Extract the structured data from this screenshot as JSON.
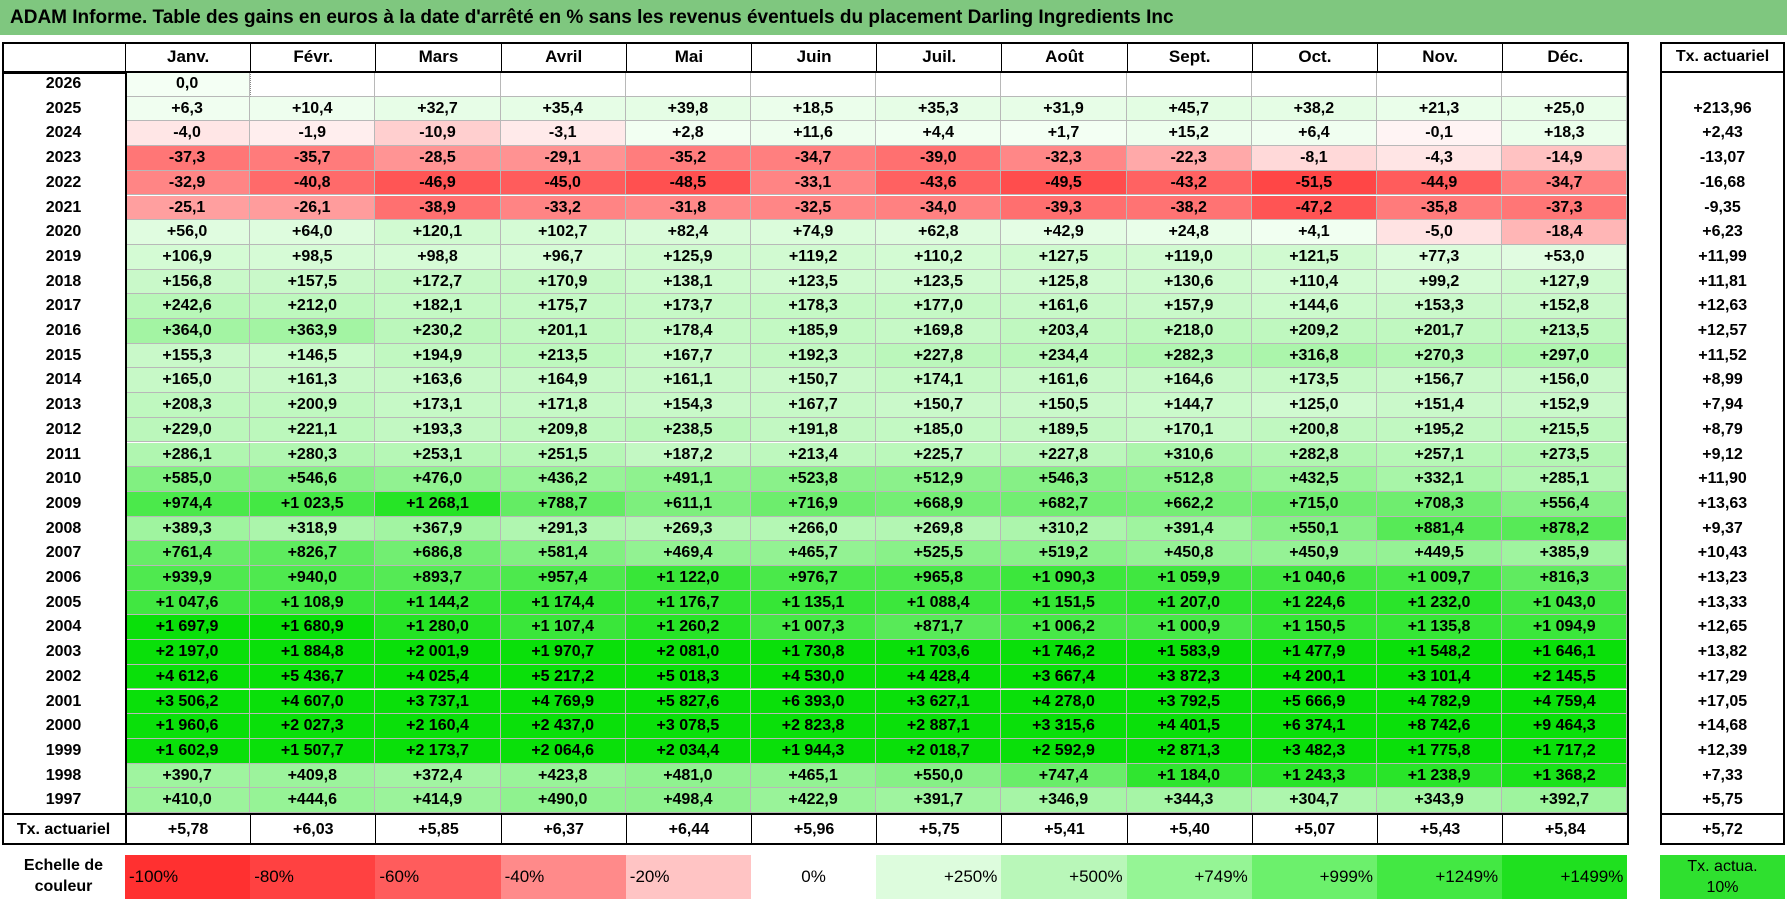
{
  "title": "ADAM Informe. Table des gains en euros à la date d'arrêté en % sans les revenus éventuels du placement Darling Ingredients Inc",
  "months": [
    "Janv.",
    "Févr.",
    "Mars",
    "Avril",
    "Mai",
    "Juin",
    "Juil.",
    "Août",
    "Sept.",
    "Oct.",
    "Nov.",
    "Déc."
  ],
  "rate_header": "Tx. actuariel",
  "rows": [
    {
      "year": "2026",
      "values": [
        "0,0",
        "",
        "",
        "",
        "",
        "",
        "",
        "",
        "",
        "",
        "",
        ""
      ],
      "rate": ""
    },
    {
      "year": "2025",
      "values": [
        "+6,3",
        "+10,4",
        "+32,7",
        "+35,4",
        "+39,8",
        "+18,5",
        "+35,3",
        "+31,9",
        "+45,7",
        "+38,2",
        "+21,3",
        "+25,0"
      ],
      "rate": "+213,96"
    },
    {
      "year": "2024",
      "values": [
        "-4,0",
        "-1,9",
        "-10,9",
        "-3,1",
        "+2,8",
        "+11,6",
        "+4,4",
        "+1,7",
        "+15,2",
        "+6,4",
        "-0,1",
        "+18,3"
      ],
      "rate": "+2,43"
    },
    {
      "year": "2023",
      "values": [
        "-37,3",
        "-35,7",
        "-28,5",
        "-29,1",
        "-35,2",
        "-34,7",
        "-39,0",
        "-32,3",
        "-22,3",
        "-8,1",
        "-4,3",
        "-14,9"
      ],
      "rate": "-13,07"
    },
    {
      "year": "2022",
      "values": [
        "-32,9",
        "-40,8",
        "-46,9",
        "-45,0",
        "-48,5",
        "-33,1",
        "-43,6",
        "-49,5",
        "-43,2",
        "-51,5",
        "-44,9",
        "-34,7"
      ],
      "rate": "-16,68"
    },
    {
      "year": "2021",
      "values": [
        "-25,1",
        "-26,1",
        "-38,9",
        "-33,2",
        "-31,8",
        "-32,5",
        "-34,0",
        "-39,3",
        "-38,2",
        "-47,2",
        "-35,8",
        "-37,3"
      ],
      "rate": "-9,35"
    },
    {
      "year": "2020",
      "values": [
        "+56,0",
        "+64,0",
        "+120,1",
        "+102,7",
        "+82,4",
        "+74,9",
        "+62,8",
        "+42,9",
        "+24,8",
        "+4,1",
        "-5,0",
        "-18,4"
      ],
      "rate": "+6,23"
    },
    {
      "year": "2019",
      "values": [
        "+106,9",
        "+98,5",
        "+98,8",
        "+96,7",
        "+125,9",
        "+119,2",
        "+110,2",
        "+127,5",
        "+119,0",
        "+121,5",
        "+77,3",
        "+53,0"
      ],
      "rate": "+11,99"
    },
    {
      "year": "2018",
      "values": [
        "+156,8",
        "+157,5",
        "+172,7",
        "+170,9",
        "+138,1",
        "+123,5",
        "+123,5",
        "+125,8",
        "+130,6",
        "+110,4",
        "+99,2",
        "+127,9"
      ],
      "rate": "+11,81"
    },
    {
      "year": "2017",
      "values": [
        "+242,6",
        "+212,0",
        "+182,1",
        "+175,7",
        "+173,7",
        "+178,3",
        "+177,0",
        "+161,6",
        "+157,9",
        "+144,6",
        "+153,3",
        "+152,8"
      ],
      "rate": "+12,63"
    },
    {
      "year": "2016",
      "values": [
        "+364,0",
        "+363,9",
        "+230,2",
        "+201,1",
        "+178,4",
        "+185,9",
        "+169,8",
        "+203,4",
        "+218,0",
        "+209,2",
        "+201,7",
        "+213,5"
      ],
      "rate": "+12,57"
    },
    {
      "year": "2015",
      "values": [
        "+155,3",
        "+146,5",
        "+194,9",
        "+213,5",
        "+167,7",
        "+192,3",
        "+227,8",
        "+234,4",
        "+282,3",
        "+316,8",
        "+270,3",
        "+297,0"
      ],
      "rate": "+11,52"
    },
    {
      "year": "2014",
      "values": [
        "+165,0",
        "+161,3",
        "+163,6",
        "+164,9",
        "+161,1",
        "+150,7",
        "+174,1",
        "+161,6",
        "+164,6",
        "+173,5",
        "+156,7",
        "+156,0"
      ],
      "rate": "+8,99"
    },
    {
      "year": "2013",
      "values": [
        "+208,3",
        "+200,9",
        "+173,1",
        "+171,8",
        "+154,3",
        "+167,7",
        "+150,7",
        "+150,5",
        "+144,7",
        "+125,0",
        "+151,4",
        "+152,9"
      ],
      "rate": "+7,94"
    },
    {
      "year": "2012",
      "values": [
        "+229,0",
        "+221,1",
        "+193,3",
        "+209,8",
        "+238,5",
        "+191,8",
        "+185,0",
        "+189,5",
        "+170,1",
        "+200,8",
        "+195,2",
        "+215,5"
      ],
      "rate": "+8,79"
    },
    {
      "year": "2011",
      "values": [
        "+286,1",
        "+280,3",
        "+253,1",
        "+251,5",
        "+187,2",
        "+213,4",
        "+225,7",
        "+227,8",
        "+310,6",
        "+282,8",
        "+257,1",
        "+273,5"
      ],
      "rate": "+9,12"
    },
    {
      "year": "2010",
      "values": [
        "+585,0",
        "+546,6",
        "+476,0",
        "+436,2",
        "+491,1",
        "+523,8",
        "+512,9",
        "+546,3",
        "+512,8",
        "+432,5",
        "+332,1",
        "+285,1"
      ],
      "rate": "+11,90"
    },
    {
      "year": "2009",
      "values": [
        "+974,4",
        "+1 023,5",
        "+1 268,1",
        "+788,7",
        "+611,1",
        "+716,9",
        "+668,9",
        "+682,7",
        "+662,2",
        "+715,0",
        "+708,3",
        "+556,4"
      ],
      "rate": "+13,63"
    },
    {
      "year": "2008",
      "values": [
        "+389,3",
        "+318,9",
        "+367,9",
        "+291,3",
        "+269,3",
        "+266,0",
        "+269,8",
        "+310,2",
        "+391,4",
        "+550,1",
        "+881,4",
        "+878,2"
      ],
      "rate": "+9,37"
    },
    {
      "year": "2007",
      "values": [
        "+761,4",
        "+826,7",
        "+686,8",
        "+581,4",
        "+469,4",
        "+465,7",
        "+525,5",
        "+519,2",
        "+450,8",
        "+450,9",
        "+449,5",
        "+385,9"
      ],
      "rate": "+10,43"
    },
    {
      "year": "2006",
      "values": [
        "+939,9",
        "+940,0",
        "+893,7",
        "+957,4",
        "+1 122,0",
        "+976,7",
        "+965,8",
        "+1 090,3",
        "+1 059,9",
        "+1 040,6",
        "+1 009,7",
        "+816,3"
      ],
      "rate": "+13,23"
    },
    {
      "year": "2005",
      "values": [
        "+1 047,6",
        "+1 108,9",
        "+1 144,2",
        "+1 174,4",
        "+1 176,7",
        "+1 135,1",
        "+1 088,4",
        "+1 151,5",
        "+1 207,0",
        "+1 224,6",
        "+1 232,0",
        "+1 043,0"
      ],
      "rate": "+13,33"
    },
    {
      "year": "2004",
      "values": [
        "+1 697,9",
        "+1 680,9",
        "+1 280,0",
        "+1 107,4",
        "+1 260,2",
        "+1 007,3",
        "+871,7",
        "+1 006,2",
        "+1 000,9",
        "+1 150,5",
        "+1 135,8",
        "+1 094,9"
      ],
      "rate": "+12,65"
    },
    {
      "year": "2003",
      "values": [
        "+2 197,0",
        "+1 884,8",
        "+2 001,9",
        "+1 970,7",
        "+2 081,0",
        "+1 730,8",
        "+1 703,6",
        "+1 746,2",
        "+1 583,9",
        "+1 477,9",
        "+1 548,2",
        "+1 646,1"
      ],
      "rate": "+13,82"
    },
    {
      "year": "2002",
      "values": [
        "+4 612,6",
        "+5 436,7",
        "+4 025,4",
        "+5 217,2",
        "+5 018,3",
        "+4 530,0",
        "+4 428,4",
        "+3 667,4",
        "+3 872,3",
        "+4 200,1",
        "+3 101,4",
        "+2 145,5"
      ],
      "rate": "+17,29"
    },
    {
      "year": "2001",
      "values": [
        "+3 506,2",
        "+4 607,0",
        "+3 737,1",
        "+4 769,9",
        "+5 827,6",
        "+6 393,0",
        "+3 627,1",
        "+4 278,0",
        "+3 792,5",
        "+5 666,9",
        "+4 782,9",
        "+4 759,4"
      ],
      "rate": "+17,05"
    },
    {
      "year": "2000",
      "values": [
        "+1 960,6",
        "+2 027,3",
        "+2 160,4",
        "+2 437,0",
        "+3 078,5",
        "+2 823,8",
        "+2 887,1",
        "+3 315,6",
        "+4 401,5",
        "+6 374,1",
        "+8 742,6",
        "+9 464,3"
      ],
      "rate": "+14,68"
    },
    {
      "year": "1999",
      "values": [
        "+1 602,9",
        "+1 507,7",
        "+2 173,7",
        "+2 064,6",
        "+2 034,4",
        "+1 944,3",
        "+2 018,7",
        "+2 592,9",
        "+2 871,3",
        "+3 482,3",
        "+1 775,8",
        "+1 717,2"
      ],
      "rate": "+12,39"
    },
    {
      "year": "1998",
      "values": [
        "+390,7",
        "+409,8",
        "+372,4",
        "+423,8",
        "+481,0",
        "+465,1",
        "+550,0",
        "+747,4",
        "+1 184,0",
        "+1 243,3",
        "+1 238,9",
        "+1 368,2"
      ],
      "rate": "+7,33"
    },
    {
      "year": "1997",
      "values": [
        "+410,0",
        "+444,6",
        "+414,9",
        "+490,0",
        "+498,4",
        "+422,9",
        "+391,7",
        "+346,9",
        "+344,3",
        "+304,7",
        "+343,9",
        "+392,7"
      ],
      "rate": "+5,75"
    }
  ],
  "footer": {
    "label": "Tx. actuariel",
    "values": [
      "+5,78",
      "+6,03",
      "+5,85",
      "+6,37",
      "+6,44",
      "+5,96",
      "+5,75",
      "+5,41",
      "+5,40",
      "+5,07",
      "+5,43",
      "+5,84"
    ],
    "rate": "+5,72"
  },
  "scale": {
    "label": "Echelle de couleur",
    "items": [
      {
        "text": "-100%",
        "color": "#ff3030",
        "align": "left"
      },
      {
        "text": "-80%",
        "color": "#ff4141",
        "align": "left"
      },
      {
        "text": "-60%",
        "color": "#ff5c5c",
        "align": "left"
      },
      {
        "text": "-40%",
        "color": "#ff8a8a",
        "align": "left"
      },
      {
        "text": "-20%",
        "color": "#ffc4c4",
        "align": "left"
      },
      {
        "text": "0%",
        "color": "#ffffff",
        "align": "center"
      },
      {
        "text": "+250%",
        "color": "#ddfcdd",
        "align": "right"
      },
      {
        "text": "+500%",
        "color": "#b9f7b9",
        "align": "right"
      },
      {
        "text": "+749%",
        "color": "#95f595",
        "align": "right"
      },
      {
        "text": "+999%",
        "color": "#6cf06c",
        "align": "right"
      },
      {
        "text": "+1249%",
        "color": "#43e843",
        "align": "right"
      },
      {
        "text": "+1499%",
        "color": "#1fe01f",
        "align": "right"
      }
    ],
    "rate_label": "Tx. actua. 10%",
    "rate_color": "#2fe02f"
  },
  "colors": {
    "title_bg": "#7fc77f"
  }
}
